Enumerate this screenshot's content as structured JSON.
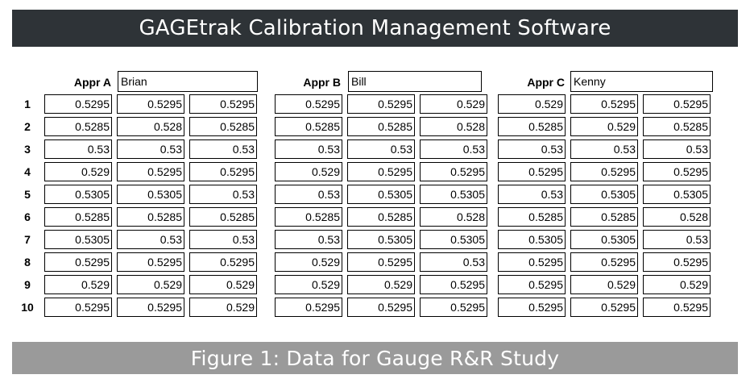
{
  "title": "GAGEtrak Calibration Management Software",
  "caption": "Figure 1: Data for Gauge R&R Study",
  "row_numbers": [
    "1",
    "2",
    "3",
    "4",
    "5",
    "6",
    "7",
    "8",
    "9",
    "10"
  ],
  "appraisers": [
    {
      "label": "Appr A",
      "name": "Brian",
      "rows": [
        [
          "0.5295",
          "0.5295",
          "0.5295"
        ],
        [
          "0.5285",
          "0.528",
          "0.5285"
        ],
        [
          "0.53",
          "0.53",
          "0.53"
        ],
        [
          "0.529",
          "0.5295",
          "0.5295"
        ],
        [
          "0.5305",
          "0.5305",
          "0.53"
        ],
        [
          "0.5285",
          "0.5285",
          "0.5285"
        ],
        [
          "0.5305",
          "0.53",
          "0.53"
        ],
        [
          "0.5295",
          "0.5295",
          "0.5295"
        ],
        [
          "0.529",
          "0.529",
          "0.529"
        ],
        [
          "0.5295",
          "0.5295",
          "0.529"
        ]
      ]
    },
    {
      "label": "Appr B",
      "name": "Bill",
      "rows": [
        [
          "0.5295",
          "0.5295",
          "0.529"
        ],
        [
          "0.5285",
          "0.5285",
          "0.528"
        ],
        [
          "0.53",
          "0.53",
          "0.53"
        ],
        [
          "0.529",
          "0.5295",
          "0.5295"
        ],
        [
          "0.53",
          "0.5305",
          "0.5305"
        ],
        [
          "0.5285",
          "0.5285",
          "0.528"
        ],
        [
          "0.53",
          "0.5305",
          "0.5305"
        ],
        [
          "0.529",
          "0.5295",
          "0.53"
        ],
        [
          "0.529",
          "0.529",
          "0.5295"
        ],
        [
          "0.5295",
          "0.5295",
          "0.5295"
        ]
      ]
    },
    {
      "label": "Appr C",
      "name": "Kenny",
      "rows": [
        [
          "0.529",
          "0.5295",
          "0.5295"
        ],
        [
          "0.5285",
          "0.529",
          "0.5285"
        ],
        [
          "0.53",
          "0.53",
          "0.53"
        ],
        [
          "0.5295",
          "0.5295",
          "0.5295"
        ],
        [
          "0.53",
          "0.5305",
          "0.5305"
        ],
        [
          "0.5285",
          "0.5285",
          "0.528"
        ],
        [
          "0.5305",
          "0.5305",
          "0.53"
        ],
        [
          "0.5295",
          "0.5295",
          "0.5295"
        ],
        [
          "0.5295",
          "0.529",
          "0.529"
        ],
        [
          "0.5295",
          "0.5295",
          "0.5295"
        ]
      ]
    }
  ]
}
